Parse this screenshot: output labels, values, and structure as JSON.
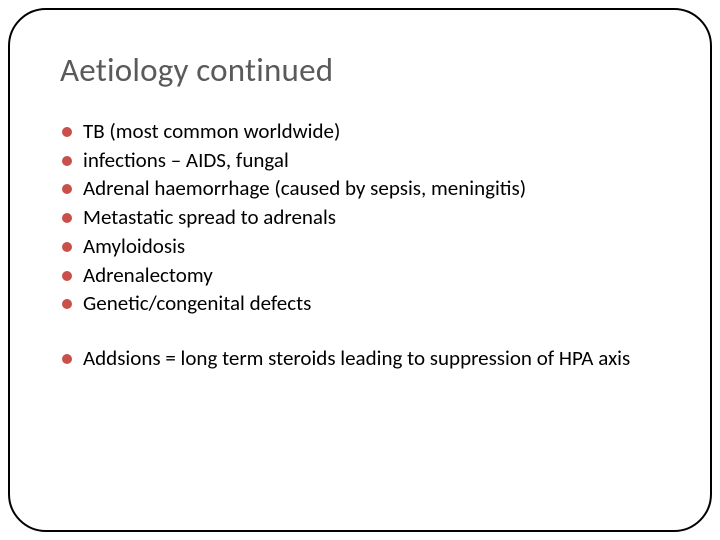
{
  "slide": {
    "title": "Aetiology continued",
    "title_color": "#5a5a5a",
    "title_fontsize": 33,
    "body_fontsize": 21,
    "body_text_color": "#000000",
    "bullet_color": "#c84f4a",
    "frame_border_color": "#000000",
    "frame_border_radius": 38,
    "background_color": "#ffffff",
    "group1": [
      "TB (most common worldwide)",
      "infections – AIDS, fungal",
      "Adrenal haemorrhage (caused by sepsis, meningitis)",
      "Metastatic spread to adrenals",
      "Amyloidosis",
      "Adrenalectomy",
      "Genetic/congenital defects"
    ],
    "group2": [
      "Addsions = long term steroids leading to suppression of HPA axis"
    ]
  }
}
